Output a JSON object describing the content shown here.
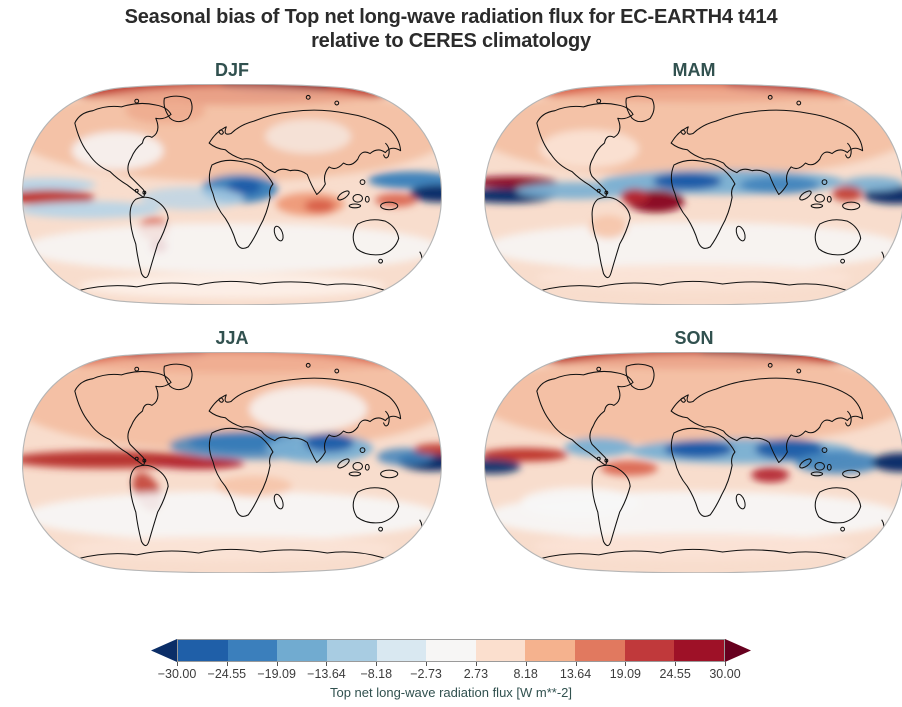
{
  "figure": {
    "title_line1": "Seasonal bias of Top net long-wave radiation flux for EC-EARTH4 t414",
    "title_line2": "relative to CERES climatology"
  },
  "chart_data": {
    "type": "heatmap",
    "subtype": "filled-contour-world-maps",
    "projection": "Robinson",
    "variable": "Top net long-wave radiation flux",
    "units": "W m**-2",
    "model": "EC-EARTH4 t414",
    "reference": "CERES climatology",
    "title": "Seasonal bias of Top net long-wave radiation flux for EC-EARTH4 t414 relative to CERES climatology",
    "colors": {
      "title": "#2b2b2b",
      "panel_title": "#31514f",
      "tick_label": "#3c3c3c",
      "colorbar_label": "#31514f",
      "map_base": "#f8ddcd",
      "map_outline": "#b5b5b5",
      "coastline": "#111111"
    },
    "colorbar": {
      "label": "Top net long-wave radiation flux [W m**-2]",
      "tick_labels": [
        "−30.00",
        "−24.55",
        "−19.09",
        "−13.64",
        "−8.18",
        "−2.73",
        "2.73",
        "8.18",
        "13.64",
        "19.09",
        "24.55",
        "30.00"
      ],
      "tick_values": [
        -30.0,
        -24.55,
        -19.09,
        -13.64,
        -8.18,
        -2.73,
        2.73,
        8.18,
        13.64,
        19.09,
        24.55,
        30.0
      ],
      "segment_colors": [
        "#1f5fa8",
        "#3b7fbc",
        "#71abd0",
        "#a8cce2",
        "#d9e8f1",
        "#f7f6f5",
        "#fbdfce",
        "#f5b28e",
        "#e1795f",
        "#c0393b",
        "#9e1127"
      ],
      "extend_low_color": "#0b2e67",
      "extend_high_color": "#67001f",
      "extend": "both"
    },
    "feature_format": "approximate bias blobs as [x, y, rx, ry, rotation_deg, color, opacity] in 440x232 map coordinates (equator y=116)",
    "panels": [
      {
        "id": "djf",
        "label": "DJF",
        "features": [
          [
            220,
            2,
            190,
            20,
            0,
            "#c0392f",
            1
          ],
          [
            268,
            -2,
            60,
            13,
            0,
            "#8c0f26",
            1
          ],
          [
            150,
            28,
            42,
            14,
            0,
            "#d9604a",
            0.8
          ],
          [
            220,
            52,
            228,
            50,
            0,
            "#f3bb9e",
            0.8
          ],
          [
            100,
            70,
            48,
            20,
            0,
            "#f7f7f7",
            0.85
          ],
          [
            300,
            55,
            45,
            18,
            0,
            "#f7f7f7",
            0.6
          ],
          [
            25,
            106,
            52,
            7,
            0,
            "#b6d4e8",
            0.95
          ],
          [
            28,
            119,
            48,
            8,
            0,
            "#c0392f",
            1
          ],
          [
            70,
            132,
            75,
            9,
            0,
            "#b6d4e8",
            0.9
          ],
          [
            228,
            110,
            40,
            15,
            0,
            "#3f83bb",
            1
          ],
          [
            233,
            108,
            18,
            8,
            0,
            "#1c5ca8",
            1
          ],
          [
            178,
            120,
            55,
            12,
            0,
            "#b6d4e8",
            0.75
          ],
          [
            302,
            126,
            36,
            12,
            0,
            "#ef9c7b",
            1
          ],
          [
            312,
            128,
            16,
            7,
            0,
            "#d9604a",
            1
          ],
          [
            408,
            101,
            45,
            9,
            0,
            "#3f83bb",
            1
          ],
          [
            437,
            115,
            30,
            9,
            0,
            "#0a2f6a",
            1
          ],
          [
            392,
            122,
            22,
            7,
            0,
            "#d9604a",
            0.9
          ],
          [
            138,
            152,
            16,
            12,
            0,
            "#d9604a",
            0.85
          ],
          [
            143,
            170,
            9,
            7,
            0,
            "#b42731",
            0.9
          ],
          [
            220,
            172,
            218,
            26,
            0,
            "#f7f7f7",
            0.85
          ],
          [
            220,
            212,
            160,
            13,
            0,
            "#fdf1e9",
            0.9
          ]
        ]
      },
      {
        "id": "mam",
        "label": "MAM",
        "features": [
          [
            225,
            3,
            192,
            16,
            0,
            "#d9604a",
            1
          ],
          [
            305,
            0,
            52,
            11,
            0,
            "#b42731",
            0.95
          ],
          [
            220,
            50,
            228,
            48,
            0,
            "#f3bb9e",
            0.8
          ],
          [
            110,
            68,
            52,
            20,
            0,
            "#fbe3d6",
            0.9
          ],
          [
            30,
            103,
            46,
            6,
            0,
            "#8c0f26",
            1
          ],
          [
            26,
            117,
            50,
            8,
            0,
            "#0a2f6a",
            1
          ],
          [
            95,
            112,
            62,
            9,
            0,
            "#79afd3",
            0.9
          ],
          [
            250,
            103,
            128,
            13,
            0,
            "#79afd3",
            0.95
          ],
          [
            213,
            102,
            36,
            9,
            0,
            "#1c5ca8",
            1
          ],
          [
            310,
            106,
            42,
            9,
            0,
            "#3f83bb",
            0.9
          ],
          [
            180,
            123,
            30,
            12,
            0,
            "#8c0f26",
            1
          ],
          [
            158,
            118,
            15,
            8,
            0,
            "#b42731",
            1
          ],
          [
            432,
            117,
            34,
            9,
            0,
            "#0a2f6a",
            1
          ],
          [
            408,
            105,
            32,
            8,
            0,
            "#79afd3",
            0.9
          ],
          [
            381,
            115,
            16,
            8,
            0,
            "#c0392f",
            0.9
          ],
          [
            220,
            171,
            218,
            26,
            0,
            "#f7f7f7",
            0.85
          ],
          [
            130,
            150,
            20,
            12,
            0,
            "#f6c4a8",
            0.9
          ],
          [
            220,
            203,
            165,
            14,
            0,
            "#fbe3d6",
            0.9
          ]
        ]
      },
      {
        "id": "jja",
        "label": "JJA",
        "features": [
          [
            225,
            5,
            192,
            17,
            0,
            "#d9604a",
            0.95
          ],
          [
            150,
            0,
            42,
            11,
            0,
            "#b42731",
            0.9
          ],
          [
            220,
            52,
            230,
            52,
            0,
            "#f3bb9e",
            0.85
          ],
          [
            300,
            60,
            62,
            24,
            0,
            "#f7f7f7",
            0.8
          ],
          [
            88,
            113,
            92,
            6,
            0,
            "#8c0f26",
            1
          ],
          [
            88,
            113,
            104,
            10,
            0,
            "#c0392f",
            0.8
          ],
          [
            185,
            117,
            48,
            6,
            0,
            "#b42731",
            1
          ],
          [
            232,
            95,
            58,
            10,
            0,
            "#1c5ca8",
            1
          ],
          [
            242,
            98,
            88,
            15,
            0,
            "#3f83bb",
            0.8
          ],
          [
            312,
            101,
            56,
            15,
            0,
            "#79afd3",
            0.95
          ],
          [
            322,
            95,
            26,
            10,
            0,
            "#1c5ca8",
            0.95
          ],
          [
            430,
            115,
            36,
            10,
            0,
            "#0a2f6a",
            1
          ],
          [
            402,
            110,
            30,
            9,
            0,
            "#3f83bb",
            0.85
          ],
          [
            437,
            102,
            26,
            6,
            0,
            "#c0392f",
            0.9
          ],
          [
            131,
            147,
            13,
            22,
            -28,
            "#c0392f",
            0.85
          ],
          [
            220,
            172,
            218,
            26,
            0,
            "#f7f7f7",
            0.9
          ],
          [
            243,
            141,
            40,
            11,
            0,
            "#f6c4a8",
            0.9
          ],
          [
            220,
            206,
            170,
            13,
            0,
            "#fbe3d6",
            0.9
          ]
        ]
      },
      {
        "id": "son",
        "label": "SON",
        "features": [
          [
            222,
            1,
            188,
            17,
            0,
            "#c0392f",
            1
          ],
          [
            282,
            -2,
            56,
            11,
            0,
            "#8c0f26",
            1
          ],
          [
            220,
            50,
            226,
            48,
            0,
            "#f3bb9e",
            0.85
          ],
          [
            120,
            100,
            36,
            10,
            0,
            "#79afd3",
            0.95
          ],
          [
            270,
            104,
            118,
            13,
            0,
            "#79afd3",
            0.95
          ],
          [
            225,
            102,
            36,
            9,
            0,
            "#1c5ca8",
            1
          ],
          [
            320,
            102,
            36,
            11,
            0,
            "#1c5ca8",
            0.95
          ],
          [
            372,
            116,
            46,
            12,
            0,
            "#3f83bb",
            0.9
          ],
          [
            42,
            108,
            46,
            7,
            0,
            "#c0392f",
            1
          ],
          [
            8,
            120,
            30,
            8,
            0,
            "#0a2f6a",
            0.95
          ],
          [
            437,
            116,
            30,
            10,
            0,
            "#0a2f6a",
            1
          ],
          [
            152,
            122,
            30,
            8,
            0,
            "#d9604a",
            0.9
          ],
          [
            300,
            129,
            20,
            8,
            0,
            "#b42731",
            0.95
          ],
          [
            220,
            172,
            218,
            26,
            0,
            "#f7f7f7",
            0.9
          ],
          [
            100,
            158,
            62,
            16,
            0,
            "#f7f7f7",
            0.9
          ],
          [
            220,
            204,
            168,
            14,
            0,
            "#fbe3d6",
            0.85
          ]
        ]
      }
    ]
  }
}
